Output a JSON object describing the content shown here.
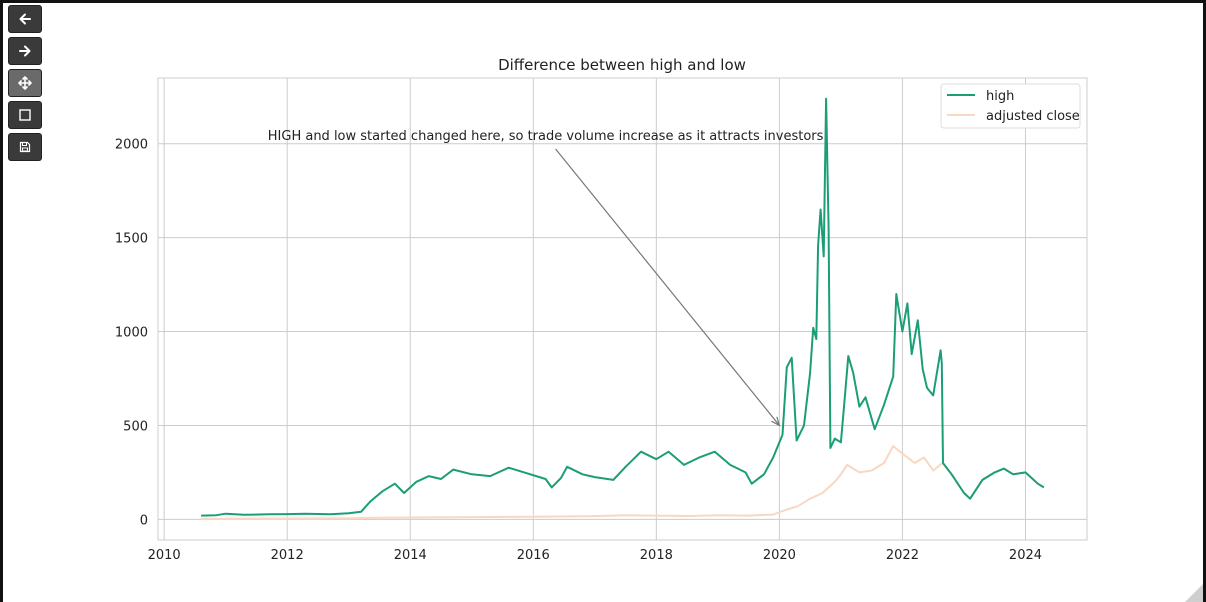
{
  "toolbar": {
    "buttons": [
      {
        "name": "back-button",
        "icon": "arrow-left-icon"
      },
      {
        "name": "forward-button",
        "icon": "arrow-right-icon"
      },
      {
        "name": "pan-button",
        "icon": "move-icon",
        "active": true
      },
      {
        "name": "zoom-button",
        "icon": "square-icon"
      },
      {
        "name": "save-button",
        "icon": "floppy-disk-icon"
      }
    ]
  },
  "chart_data": {
    "type": "line",
    "title": "Difference between high and low",
    "xlabel": "",
    "ylabel": "",
    "xlim": [
      2009.9,
      2025.0
    ],
    "ylim": [
      -110,
      2350
    ],
    "x_ticks": [
      2010,
      2012,
      2014,
      2016,
      2018,
      2020,
      2022,
      2024
    ],
    "y_ticks": [
      0,
      500,
      1000,
      1500,
      2000
    ],
    "grid": true,
    "legend_position": "upper right",
    "series": [
      {
        "name": "high",
        "color": "#1b9e77",
        "points": [
          [
            2010.6,
            20
          ],
          [
            2010.85,
            22
          ],
          [
            2011.0,
            30
          ],
          [
            2011.3,
            24
          ],
          [
            2011.7,
            27
          ],
          [
            2012.0,
            28
          ],
          [
            2012.3,
            30
          ],
          [
            2012.7,
            27
          ],
          [
            2013.0,
            32
          ],
          [
            2013.2,
            40
          ],
          [
            2013.35,
            95
          ],
          [
            2013.55,
            150
          ],
          [
            2013.75,
            190
          ],
          [
            2013.9,
            140
          ],
          [
            2014.1,
            200
          ],
          [
            2014.3,
            230
          ],
          [
            2014.5,
            215
          ],
          [
            2014.7,
            265
          ],
          [
            2015.0,
            240
          ],
          [
            2015.3,
            230
          ],
          [
            2015.6,
            275
          ],
          [
            2015.9,
            245
          ],
          [
            2016.2,
            215
          ],
          [
            2016.3,
            170
          ],
          [
            2016.45,
            220
          ],
          [
            2016.55,
            280
          ],
          [
            2016.8,
            240
          ],
          [
            2017.0,
            225
          ],
          [
            2017.3,
            210
          ],
          [
            2017.5,
            280
          ],
          [
            2017.75,
            360
          ],
          [
            2018.0,
            320
          ],
          [
            2018.2,
            360
          ],
          [
            2018.45,
            290
          ],
          [
            2018.7,
            330
          ],
          [
            2018.95,
            360
          ],
          [
            2019.2,
            290
          ],
          [
            2019.45,
            250
          ],
          [
            2019.55,
            190
          ],
          [
            2019.75,
            240
          ],
          [
            2019.9,
            330
          ],
          [
            2020.05,
            450
          ],
          [
            2020.12,
            810
          ],
          [
            2020.2,
            860
          ],
          [
            2020.28,
            420
          ],
          [
            2020.4,
            500
          ],
          [
            2020.5,
            780
          ],
          [
            2020.55,
            1020
          ],
          [
            2020.6,
            960
          ],
          [
            2020.63,
            1460
          ],
          [
            2020.67,
            1650
          ],
          [
            2020.72,
            1400
          ],
          [
            2020.76,
            2240
          ],
          [
            2020.8,
            1550
          ],
          [
            2020.83,
            380
          ],
          [
            2020.9,
            430
          ],
          [
            2021.0,
            410
          ],
          [
            2021.05,
            600
          ],
          [
            2021.12,
            870
          ],
          [
            2021.2,
            780
          ],
          [
            2021.3,
            600
          ],
          [
            2021.4,
            650
          ],
          [
            2021.55,
            480
          ],
          [
            2021.7,
            610
          ],
          [
            2021.85,
            760
          ],
          [
            2021.9,
            1200
          ],
          [
            2022.0,
            1000
          ],
          [
            2022.08,
            1150
          ],
          [
            2022.15,
            880
          ],
          [
            2022.25,
            1060
          ],
          [
            2022.33,
            800
          ],
          [
            2022.4,
            700
          ],
          [
            2022.5,
            660
          ],
          [
            2022.62,
            900
          ],
          [
            2022.64,
            830
          ],
          [
            2022.66,
            300
          ],
          [
            2022.8,
            240
          ],
          [
            2023.0,
            140
          ],
          [
            2023.1,
            110
          ],
          [
            2023.3,
            210
          ],
          [
            2023.5,
            250
          ],
          [
            2023.65,
            270
          ],
          [
            2023.8,
            240
          ],
          [
            2024.0,
            250
          ],
          [
            2024.2,
            190
          ],
          [
            2024.3,
            170
          ]
        ]
      },
      {
        "name": "adjusted close",
        "color": "#f8d8c2",
        "points": [
          [
            2010.6,
            3
          ],
          [
            2011.5,
            4
          ],
          [
            2012.5,
            5
          ],
          [
            2013.0,
            6
          ],
          [
            2013.5,
            8
          ],
          [
            2014.0,
            10
          ],
          [
            2015.0,
            12
          ],
          [
            2016.0,
            14
          ],
          [
            2017.0,
            17
          ],
          [
            2017.5,
            22
          ],
          [
            2018.0,
            20
          ],
          [
            2018.5,
            18
          ],
          [
            2019.0,
            22
          ],
          [
            2019.5,
            20
          ],
          [
            2019.9,
            25
          ],
          [
            2020.1,
            50
          ],
          [
            2020.3,
            70
          ],
          [
            2020.5,
            110
          ],
          [
            2020.7,
            140
          ],
          [
            2020.9,
            200
          ],
          [
            2021.0,
            240
          ],
          [
            2021.1,
            290
          ],
          [
            2021.3,
            250
          ],
          [
            2021.5,
            260
          ],
          [
            2021.7,
            300
          ],
          [
            2021.85,
            390
          ],
          [
            2022.0,
            350
          ],
          [
            2022.2,
            300
          ],
          [
            2022.35,
            330
          ],
          [
            2022.5,
            260
          ],
          [
            2022.65,
            300
          ],
          [
            2022.8,
            240
          ],
          [
            2023.0,
            140
          ],
          [
            2023.1,
            110
          ],
          [
            2023.3,
            210
          ],
          [
            2023.5,
            250
          ],
          [
            2023.65,
            270
          ],
          [
            2023.8,
            240
          ],
          [
            2024.0,
            250
          ],
          [
            2024.2,
            190
          ],
          [
            2024.3,
            170
          ]
        ]
      }
    ],
    "annotation": {
      "text": "HIGH and low started changed here, so trade volume increase as it attracts investors",
      "text_position": [
        2016.2,
        2020
      ],
      "arrow_target": [
        2020.0,
        500
      ]
    }
  }
}
